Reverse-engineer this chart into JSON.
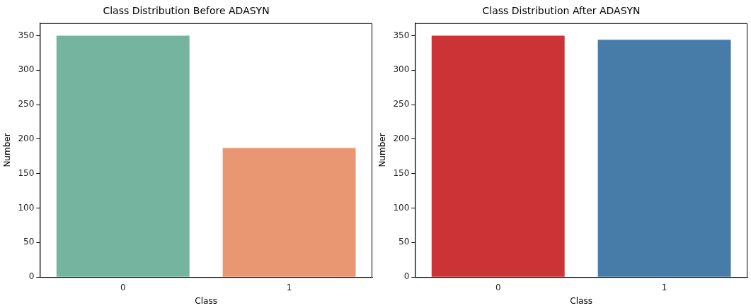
{
  "chart_data": [
    {
      "type": "bar",
      "title": "Class Distribution Before ADASYN",
      "xlabel": "Class",
      "ylabel": "Number",
      "categories": [
        "0",
        "1"
      ],
      "values": [
        350,
        187
      ],
      "colors": [
        "#75b5a0",
        "#e99673"
      ],
      "ylim": [
        0,
        368
      ],
      "yticks": [
        0,
        50,
        100,
        150,
        200,
        250,
        300,
        350
      ],
      "grid": false,
      "legend": false
    },
    {
      "type": "bar",
      "title": "Class Distribution After ADASYN",
      "xlabel": "Class",
      "ylabel": "Number",
      "categories": [
        "0",
        "1"
      ],
      "values": [
        350,
        344
      ],
      "colors": [
        "#cc3336",
        "#477ca9"
      ],
      "ylim": [
        0,
        368
      ],
      "yticks": [
        0,
        50,
        100,
        150,
        200,
        250,
        300,
        350
      ],
      "grid": false,
      "legend": false
    }
  ]
}
